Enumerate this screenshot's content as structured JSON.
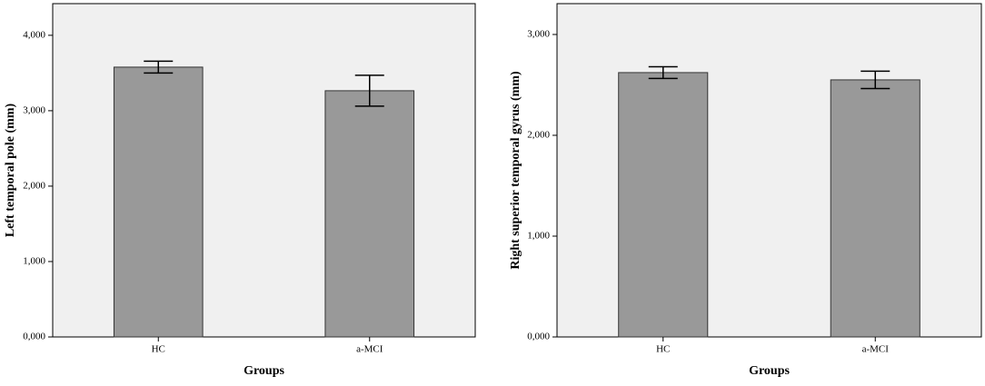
{
  "chart_data": [
    {
      "type": "bar",
      "x_label": "Groups",
      "y_label": "Left temporal pole (mm)",
      "categories": [
        "HC",
        "a-MCI"
      ],
      "values": [
        3578,
        3265
      ],
      "errors": [
        78,
        205
      ],
      "color": "#999999",
      "ylim": [
        0,
        4420
      ],
      "yticks": [
        {
          "value": 0,
          "label": "0,000"
        },
        {
          "value": 1000,
          "label": "1,000"
        },
        {
          "value": 2000,
          "label": "2,000"
        },
        {
          "value": 3000,
          "label": "3,000"
        },
        {
          "value": 4000,
          "label": "4,000"
        }
      ]
    },
    {
      "type": "bar",
      "x_label": "Groups",
      "y_label": "Right superior temporal gyrus (mm)",
      "categories": [
        "HC",
        "a-MCI"
      ],
      "values": [
        2622,
        2550
      ],
      "errors": [
        58,
        86
      ],
      "color": "#999999",
      "ylim": [
        0,
        3306
      ],
      "yticks": [
        {
          "value": 0,
          "label": "0,000"
        },
        {
          "value": 1000,
          "label": "1,000"
        },
        {
          "value": 2000,
          "label": "2,000"
        },
        {
          "value": 3000,
          "label": "3,000"
        }
      ]
    }
  ]
}
